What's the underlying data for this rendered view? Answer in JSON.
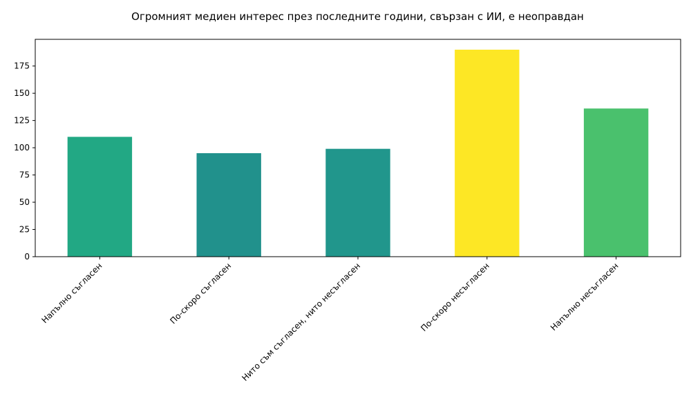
{
  "chart_data": {
    "type": "bar",
    "title": "Огромният медиен интерес през последните години, свързан с ИИ, е неоправдан",
    "xlabel": "",
    "ylabel": "",
    "categories": [
      "Напълно съгласен",
      "По-скоро съгласен",
      "Нито съм съгласен, нито несъгласен",
      "По-скоро несъгласен",
      "Напълно несъгласен"
    ],
    "values": [
      110,
      95,
      99,
      190,
      136
    ],
    "colors": [
      "#22a884",
      "#21918c",
      "#21968c",
      "#fde725",
      "#4ac16d"
    ],
    "ylim": [
      0,
      199.5
    ],
    "yticks": [
      0,
      25,
      50,
      75,
      100,
      125,
      150,
      175
    ],
    "grid": false,
    "legend": "none"
  }
}
